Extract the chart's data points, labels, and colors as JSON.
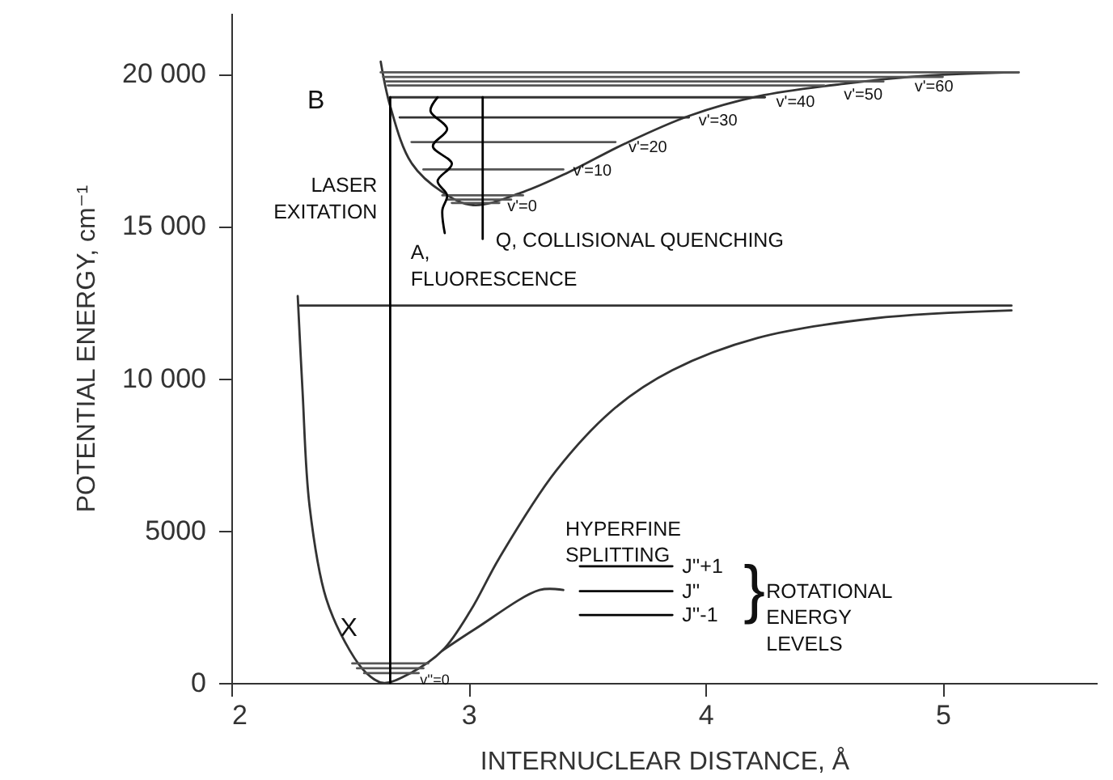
{
  "chart_data": {
    "type": "line",
    "xlabel": "INTERNUCLEAR DISTANCE, Å",
    "ylabel": "POTENTIAL ENERGY, cm⁻¹",
    "xlim": [
      2,
      5.65
    ],
    "xticks": [
      2,
      3,
      4,
      5
    ],
    "ylim": [
      0,
      22000
    ],
    "yticks": [
      0,
      {
        "value": 5000,
        "label": "5000"
      },
      {
        "value": 10000,
        "label": "10 000"
      },
      {
        "value": 15000,
        "label": "15 000"
      },
      {
        "value": 20000,
        "label": "20 000"
      }
    ],
    "grid": false,
    "marker": "none",
    "line_style": "solid",
    "series": [
      {
        "color": "#333333",
        "x": [
          2.28,
          2.3,
          2.33,
          2.4,
          2.5,
          2.57,
          2.64,
          2.75,
          2.89,
          3.01,
          3.13,
          3.37,
          3.62,
          3.86,
          4.22,
          4.71,
          5.29
        ],
        "values": [
          12700,
          9630,
          5800,
          2770,
          1060,
          320,
          0,
          300,
          1060,
          2390,
          4100,
          6970,
          9040,
          10270,
          11330,
          11970,
          12230
        ]
      },
      {
        "color": "#333333",
        "x": [
          2.29,
          5.29
        ],
        "values": [
          12390,
          12390
        ]
      },
      {
        "color": "#333333",
        "x": [
          2.63,
          2.67,
          2.76,
          2.89,
          3.02,
          3.23,
          3.42,
          3.66,
          3.93,
          4.22,
          4.59,
          4.95,
          5.32
        ],
        "values": [
          20400,
          18940,
          17070,
          16120,
          15690,
          16120,
          16760,
          17710,
          18620,
          19260,
          19680,
          19950,
          20050
        ]
      },
      {
        "color": "#555555",
        "x": [
          2.63,
          5.32
        ],
        "values": [
          20050,
          20050
        ]
      },
      {
        "color": "#555555",
        "x": [
          2.64,
          5.0
        ],
        "values": [
          19900,
          19900
        ]
      },
      {
        "color": "#555555",
        "x": [
          2.65,
          4.75
        ],
        "values": [
          19750,
          19750
        ]
      },
      {
        "color": "#555555",
        "x": [
          2.66,
          4.5
        ],
        "values": [
          19620,
          19620
        ]
      },
      {
        "color": "#333333",
        "x": [
          2.67,
          4.25
        ],
        "values": [
          19230,
          19230
        ]
      },
      {
        "color": "#333333",
        "x": [
          2.71,
          3.93
        ],
        "values": [
          18570,
          18570
        ]
      },
      {
        "color": "#555555",
        "x": [
          2.76,
          3.62
        ],
        "values": [
          17760,
          17760
        ]
      },
      {
        "color": "#555555",
        "x": [
          2.81,
          3.4
        ],
        "values": [
          16860,
          16860
        ]
      },
      {
        "color": "#555555",
        "x": [
          2.89,
          3.23
        ],
        "values": [
          16010,
          16010
        ]
      },
      {
        "color": "#555555",
        "x": [
          2.91,
          3.18
        ],
        "values": [
          15870,
          15870
        ]
      },
      {
        "color": "#555555",
        "x": [
          2.93,
          3.13
        ],
        "values": [
          15760,
          15760
        ]
      },
      {
        "color": "#555555",
        "x": [
          2.51,
          2.83
        ],
        "values": [
          640,
          640
        ]
      },
      {
        "color": "#555555",
        "x": [
          2.53,
          2.81
        ],
        "values": [
          480,
          480
        ]
      },
      {
        "color": "#555555",
        "x": [
          2.56,
          2.79
        ],
        "values": [
          320,
          320
        ]
      },
      {
        "color": "#000000",
        "x": [
          2.67,
          2.67
        ],
        "values": [
          0,
          19230
        ]
      },
      {
        "color": "#000000",
        "x": [
          3.06,
          3.06
        ],
        "values": [
          19230,
          14580
        ]
      },
      {
        "color": "#000000",
        "x": [
          2.87,
          2.84,
          2.91,
          2.85,
          2.93,
          2.87,
          2.91,
          2.89,
          2.9
        ],
        "values": [
          19230,
          18780,
          18190,
          17620,
          17050,
          16480,
          16010,
          15530,
          14770
        ]
      },
      {
        "color": "#333333",
        "x": [
          2.89,
          3.03,
          3.3,
          3.4
        ],
        "values": [
          1060,
          1780,
          3050,
          3050
        ]
      },
      {
        "color": "#000000",
        "x": [
          3.47,
          3.86
        ],
        "values": [
          3830,
          3830
        ]
      },
      {
        "color": "#000000",
        "x": [
          3.47,
          3.86
        ],
        "values": [
          3010,
          3010
        ]
      },
      {
        "color": "#000000",
        "x": [
          3.47,
          3.86
        ],
        "values": [
          2230,
          2230
        ]
      }
    ],
    "annotations": [
      {
        "text": "B",
        "x": 2.63,
        "y": 20400
      },
      {
        "text": "X",
        "x": 2.4,
        "y": 2770
      },
      {
        "text": "LASER\nEXITATION",
        "x": 2.67,
        "y": 16330
      },
      {
        "text": "A,\nFLUORESCENCE",
        "x": 2.9,
        "y": 14770
      },
      {
        "text": "Q, COLLISIONAL QUENCHING",
        "x": 3.06,
        "y": 14580
      },
      {
        "text": "v'=0",
        "x": 3.13,
        "y": 15760
      },
      {
        "text": "v'=10",
        "x": 3.4,
        "y": 16860
      },
      {
        "text": "v'=20",
        "x": 3.62,
        "y": 17760
      },
      {
        "text": "v'=30",
        "x": 3.93,
        "y": 18570
      },
      {
        "text": "v'=40",
        "x": 4.25,
        "y": 19230
      },
      {
        "text": "v'=50",
        "x": 4.59,
        "y": 19680
      },
      {
        "text": "v'=60",
        "x": 4.95,
        "y": 19950
      },
      {
        "text": "v''=0",
        "x": 2.83,
        "y": 640
      },
      {
        "text": "HYPERFINE\nSPLITTING",
        "x": 3.47,
        "y": 3830
      },
      {
        "text": "J''+1",
        "x": 3.86,
        "y": 3830
      },
      {
        "text": "J''",
        "x": 3.86,
        "y": 3010
      },
      {
        "text": "J''-1",
        "x": 3.86,
        "y": 2230
      },
      {
        "text": "}",
        "x": 3.86,
        "y": 3010
      },
      "ROTATIONAL\nENERGY\nLEVELS"
    ]
  }
}
